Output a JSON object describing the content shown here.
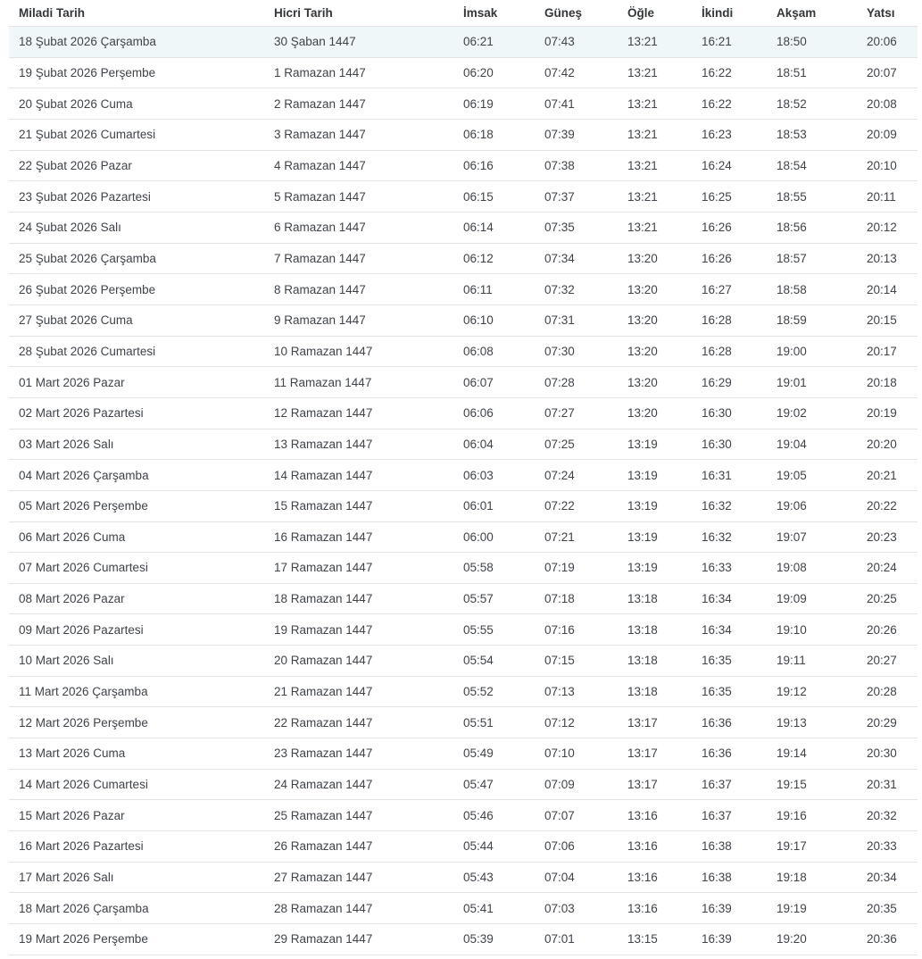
{
  "table": {
    "columns": [
      "Miladi Tarih",
      "Hicri Tarih",
      "İmsak",
      "Güneş",
      "Öğle",
      "İkindi",
      "Akşam",
      "Yatsı"
    ],
    "colors": {
      "highlight_row_bg": "#f0f7f8",
      "row_border": "#e2e3e4",
      "header_text": "#33373a",
      "body_text": "#3f444a"
    },
    "rows": [
      {
        "miladi": "18 Şubat 2026 Çarşamba",
        "hicri": "30 Şaban 1447",
        "imsak": "06:21",
        "gunes": "07:43",
        "ogle": "13:21",
        "ikindi": "16:21",
        "aksam": "18:50",
        "yatsi": "20:06",
        "highlighted": true
      },
      {
        "miladi": "19 Şubat 2026 Perşembe",
        "hicri": "1 Ramazan 1447",
        "imsak": "06:20",
        "gunes": "07:42",
        "ogle": "13:21",
        "ikindi": "16:22",
        "aksam": "18:51",
        "yatsi": "20:07",
        "highlighted": false
      },
      {
        "miladi": "20 Şubat 2026 Cuma",
        "hicri": "2 Ramazan 1447",
        "imsak": "06:19",
        "gunes": "07:41",
        "ogle": "13:21",
        "ikindi": "16:22",
        "aksam": "18:52",
        "yatsi": "20:08",
        "highlighted": false
      },
      {
        "miladi": "21 Şubat 2026 Cumartesi",
        "hicri": "3 Ramazan 1447",
        "imsak": "06:18",
        "gunes": "07:39",
        "ogle": "13:21",
        "ikindi": "16:23",
        "aksam": "18:53",
        "yatsi": "20:09",
        "highlighted": false
      },
      {
        "miladi": "22 Şubat 2026 Pazar",
        "hicri": "4 Ramazan 1447",
        "imsak": "06:16",
        "gunes": "07:38",
        "ogle": "13:21",
        "ikindi": "16:24",
        "aksam": "18:54",
        "yatsi": "20:10",
        "highlighted": false
      },
      {
        "miladi": "23 Şubat 2026 Pazartesi",
        "hicri": "5 Ramazan 1447",
        "imsak": "06:15",
        "gunes": "07:37",
        "ogle": "13:21",
        "ikindi": "16:25",
        "aksam": "18:55",
        "yatsi": "20:11",
        "highlighted": false
      },
      {
        "miladi": "24 Şubat 2026 Salı",
        "hicri": "6 Ramazan 1447",
        "imsak": "06:14",
        "gunes": "07:35",
        "ogle": "13:21",
        "ikindi": "16:26",
        "aksam": "18:56",
        "yatsi": "20:12",
        "highlighted": false
      },
      {
        "miladi": "25 Şubat 2026 Çarşamba",
        "hicri": "7 Ramazan 1447",
        "imsak": "06:12",
        "gunes": "07:34",
        "ogle": "13:20",
        "ikindi": "16:26",
        "aksam": "18:57",
        "yatsi": "20:13",
        "highlighted": false
      },
      {
        "miladi": "26 Şubat 2026 Perşembe",
        "hicri": "8 Ramazan 1447",
        "imsak": "06:11",
        "gunes": "07:32",
        "ogle": "13:20",
        "ikindi": "16:27",
        "aksam": "18:58",
        "yatsi": "20:14",
        "highlighted": false
      },
      {
        "miladi": "27 Şubat 2026 Cuma",
        "hicri": "9 Ramazan 1447",
        "imsak": "06:10",
        "gunes": "07:31",
        "ogle": "13:20",
        "ikindi": "16:28",
        "aksam": "18:59",
        "yatsi": "20:15",
        "highlighted": false
      },
      {
        "miladi": "28 Şubat 2026 Cumartesi",
        "hicri": "10 Ramazan 1447",
        "imsak": "06:08",
        "gunes": "07:30",
        "ogle": "13:20",
        "ikindi": "16:28",
        "aksam": "19:00",
        "yatsi": "20:17",
        "highlighted": false
      },
      {
        "miladi": "01 Mart 2026 Pazar",
        "hicri": "11 Ramazan 1447",
        "imsak": "06:07",
        "gunes": "07:28",
        "ogle": "13:20",
        "ikindi": "16:29",
        "aksam": "19:01",
        "yatsi": "20:18",
        "highlighted": false
      },
      {
        "miladi": "02 Mart 2026 Pazartesi",
        "hicri": "12 Ramazan 1447",
        "imsak": "06:06",
        "gunes": "07:27",
        "ogle": "13:20",
        "ikindi": "16:30",
        "aksam": "19:02",
        "yatsi": "20:19",
        "highlighted": false
      },
      {
        "miladi": "03 Mart 2026 Salı",
        "hicri": "13 Ramazan 1447",
        "imsak": "06:04",
        "gunes": "07:25",
        "ogle": "13:19",
        "ikindi": "16:30",
        "aksam": "19:04",
        "yatsi": "20:20",
        "highlighted": false
      },
      {
        "miladi": "04 Mart 2026 Çarşamba",
        "hicri": "14 Ramazan 1447",
        "imsak": "06:03",
        "gunes": "07:24",
        "ogle": "13:19",
        "ikindi": "16:31",
        "aksam": "19:05",
        "yatsi": "20:21",
        "highlighted": false
      },
      {
        "miladi": "05 Mart 2026 Perşembe",
        "hicri": "15 Ramazan 1447",
        "imsak": "06:01",
        "gunes": "07:22",
        "ogle": "13:19",
        "ikindi": "16:32",
        "aksam": "19:06",
        "yatsi": "20:22",
        "highlighted": false
      },
      {
        "miladi": "06 Mart 2026 Cuma",
        "hicri": "16 Ramazan 1447",
        "imsak": "06:00",
        "gunes": "07:21",
        "ogle": "13:19",
        "ikindi": "16:32",
        "aksam": "19:07",
        "yatsi": "20:23",
        "highlighted": false
      },
      {
        "miladi": "07 Mart 2026 Cumartesi",
        "hicri": "17 Ramazan 1447",
        "imsak": "05:58",
        "gunes": "07:19",
        "ogle": "13:19",
        "ikindi": "16:33",
        "aksam": "19:08",
        "yatsi": "20:24",
        "highlighted": false
      },
      {
        "miladi": "08 Mart 2026 Pazar",
        "hicri": "18 Ramazan 1447",
        "imsak": "05:57",
        "gunes": "07:18",
        "ogle": "13:18",
        "ikindi": "16:34",
        "aksam": "19:09",
        "yatsi": "20:25",
        "highlighted": false
      },
      {
        "miladi": "09 Mart 2026 Pazartesi",
        "hicri": "19 Ramazan 1447",
        "imsak": "05:55",
        "gunes": "07:16",
        "ogle": "13:18",
        "ikindi": "16:34",
        "aksam": "19:10",
        "yatsi": "20:26",
        "highlighted": false
      },
      {
        "miladi": "10 Mart 2026 Salı",
        "hicri": "20 Ramazan 1447",
        "imsak": "05:54",
        "gunes": "07:15",
        "ogle": "13:18",
        "ikindi": "16:35",
        "aksam": "19:11",
        "yatsi": "20:27",
        "highlighted": false
      },
      {
        "miladi": "11 Mart 2026 Çarşamba",
        "hicri": "21 Ramazan 1447",
        "imsak": "05:52",
        "gunes": "07:13",
        "ogle": "13:18",
        "ikindi": "16:35",
        "aksam": "19:12",
        "yatsi": "20:28",
        "highlighted": false
      },
      {
        "miladi": "12 Mart 2026 Perşembe",
        "hicri": "22 Ramazan 1447",
        "imsak": "05:51",
        "gunes": "07:12",
        "ogle": "13:17",
        "ikindi": "16:36",
        "aksam": "19:13",
        "yatsi": "20:29",
        "highlighted": false
      },
      {
        "miladi": "13 Mart 2026 Cuma",
        "hicri": "23 Ramazan 1447",
        "imsak": "05:49",
        "gunes": "07:10",
        "ogle": "13:17",
        "ikindi": "16:36",
        "aksam": "19:14",
        "yatsi": "20:30",
        "highlighted": false
      },
      {
        "miladi": "14 Mart 2026 Cumartesi",
        "hicri": "24 Ramazan 1447",
        "imsak": "05:47",
        "gunes": "07:09",
        "ogle": "13:17",
        "ikindi": "16:37",
        "aksam": "19:15",
        "yatsi": "20:31",
        "highlighted": false
      },
      {
        "miladi": "15 Mart 2026 Pazar",
        "hicri": "25 Ramazan 1447",
        "imsak": "05:46",
        "gunes": "07:07",
        "ogle": "13:16",
        "ikindi": "16:37",
        "aksam": "19:16",
        "yatsi": "20:32",
        "highlighted": false
      },
      {
        "miladi": "16 Mart 2026 Pazartesi",
        "hicri": "26 Ramazan 1447",
        "imsak": "05:44",
        "gunes": "07:06",
        "ogle": "13:16",
        "ikindi": "16:38",
        "aksam": "19:17",
        "yatsi": "20:33",
        "highlighted": false
      },
      {
        "miladi": "17 Mart 2026 Salı",
        "hicri": "27 Ramazan 1447",
        "imsak": "05:43",
        "gunes": "07:04",
        "ogle": "13:16",
        "ikindi": "16:38",
        "aksam": "19:18",
        "yatsi": "20:34",
        "highlighted": false
      },
      {
        "miladi": "18 Mart 2026 Çarşamba",
        "hicri": "28 Ramazan 1447",
        "imsak": "05:41",
        "gunes": "07:03",
        "ogle": "13:16",
        "ikindi": "16:39",
        "aksam": "19:19",
        "yatsi": "20:35",
        "highlighted": false
      },
      {
        "miladi": "19 Mart 2026 Perşembe",
        "hicri": "29 Ramazan 1447",
        "imsak": "05:39",
        "gunes": "07:01",
        "ogle": "13:15",
        "ikindi": "16:39",
        "aksam": "19:20",
        "yatsi": "20:36",
        "highlighted": false
      }
    ]
  }
}
